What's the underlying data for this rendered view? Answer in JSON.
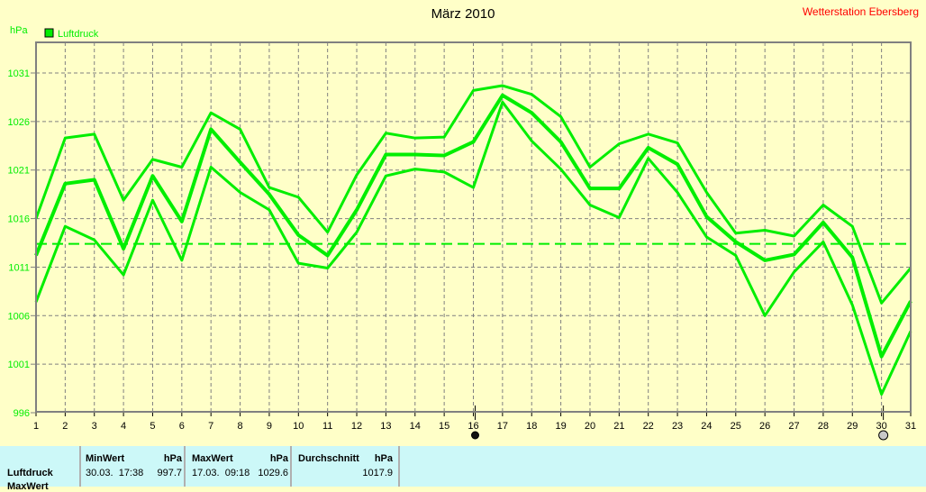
{
  "title": "März 2010",
  "station": "Wetterstation Ebersberg",
  "colors": {
    "series": "#00ee00",
    "background": "#ffffc8",
    "grid": "#808080",
    "station": "#ff0000",
    "table_bg": "#ccf8f8"
  },
  "chart_data": {
    "type": "line",
    "title": "März 2010",
    "ylabel": "hPa",
    "legend": {
      "label": "Luftdruck",
      "placement": "top-left"
    },
    "ylim": [
      996,
      1034
    ],
    "yticks": [
      996,
      1001,
      1006,
      1011,
      1016,
      1021,
      1026,
      1031
    ],
    "x": [
      1,
      2,
      3,
      4,
      5,
      6,
      7,
      8,
      9,
      10,
      11,
      12,
      13,
      14,
      15,
      16,
      17,
      18,
      19,
      20,
      21,
      22,
      23,
      24,
      25,
      26,
      27,
      28,
      29,
      30,
      31
    ],
    "xlim": [
      1,
      31
    ],
    "grid": true,
    "reference_line": 1013.4,
    "series": [
      {
        "role": "max",
        "values": [
          1016.0,
          1024.3,
          1024.7,
          1017.9,
          1022.1,
          1021.3,
          1026.9,
          1025.2,
          1019.2,
          1018.2,
          1014.6,
          1020.5,
          1024.8,
          1024.3,
          1024.4,
          1029.2,
          1029.7,
          1028.8,
          1026.5,
          1021.3,
          1023.7,
          1024.7,
          1023.8,
          1018.7,
          1014.5,
          1014.8,
          1014.2,
          1017.4,
          1015.2,
          1007.3,
          1010.9
        ]
      },
      {
        "role": "mean",
        "values": [
          1012.2,
          1019.6,
          1020.0,
          1012.9,
          1020.4,
          1015.7,
          1025.2,
          1021.8,
          1018.5,
          1014.3,
          1012.2,
          1016.9,
          1022.6,
          1022.6,
          1022.5,
          1023.9,
          1028.7,
          1026.9,
          1023.9,
          1019.1,
          1019.1,
          1023.3,
          1021.6,
          1016.2,
          1013.6,
          1011.7,
          1012.3,
          1015.6,
          1012.0,
          1001.8,
          1007.5
        ]
      },
      {
        "role": "min",
        "values": [
          1007.4,
          1015.2,
          1013.8,
          1010.2,
          1017.9,
          1011.7,
          1021.3,
          1018.7,
          1016.9,
          1011.4,
          1010.9,
          1014.6,
          1020.4,
          1021.1,
          1020.8,
          1019.2,
          1028.0,
          1024.0,
          1021.1,
          1017.4,
          1016.1,
          1022.2,
          1018.7,
          1014.1,
          1012.2,
          1006.0,
          1010.5,
          1013.6,
          1007.1,
          997.9,
          1004.4
        ]
      }
    ],
    "moon_markers": [
      {
        "day": 16,
        "phase": "new-moon"
      },
      {
        "day": 30,
        "phase": "full-moon"
      }
    ]
  },
  "table": {
    "row_labels": [
      "Luftdruck",
      "MaxWert"
    ],
    "min": {
      "header": "MinWert",
      "unit": "hPa",
      "time": "30.03.  17:38",
      "value": "997.7"
    },
    "max": {
      "header": "MaxWert",
      "unit": "hPa",
      "time": "17.03.  09:18",
      "value": "1029.6"
    },
    "avg": {
      "header": "Durchschnitt",
      "unit": "hPa",
      "value": "1017.9"
    }
  }
}
